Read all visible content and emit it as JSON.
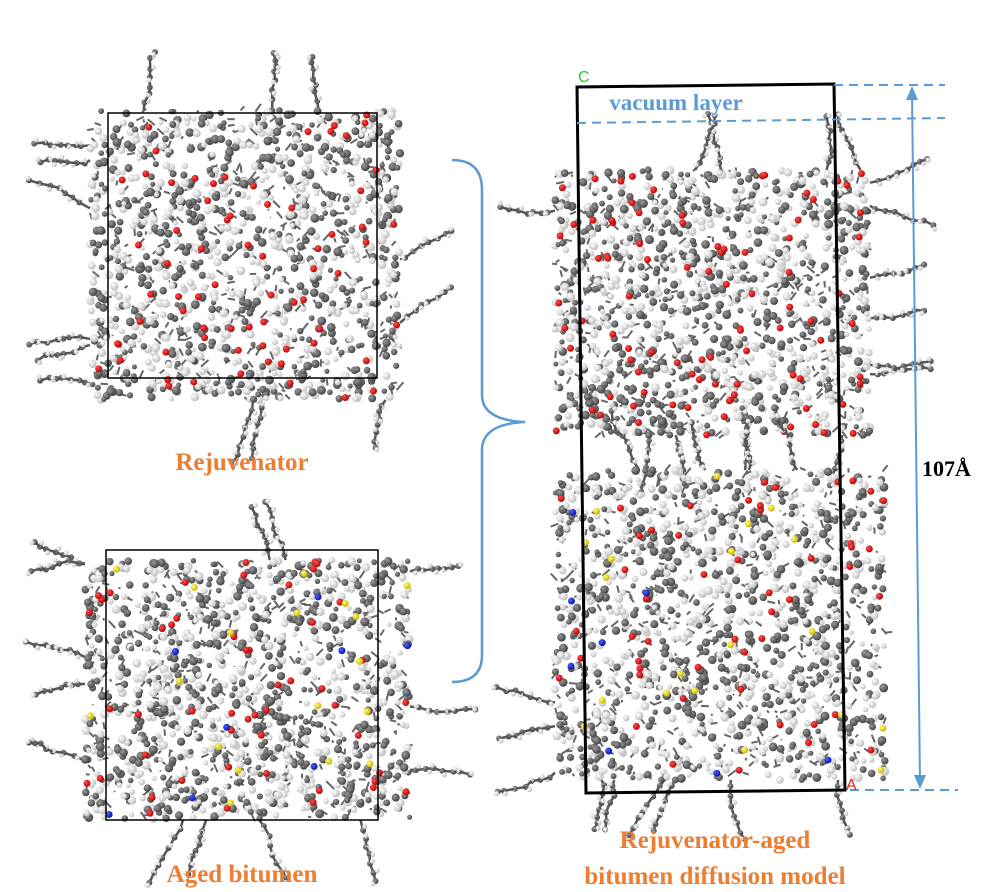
{
  "left_panels": [
    {
      "label": "Rejuvenator"
    },
    {
      "label": "Aged bitumen"
    }
  ],
  "right_panel": {
    "vacuum_label": "vacuum layer",
    "height_label": "107Å",
    "caption_lines": [
      "Rejuvenator-aged",
      "bitumen diffusion model"
    ],
    "axis_labels": [
      "C",
      "A"
    ]
  }
}
